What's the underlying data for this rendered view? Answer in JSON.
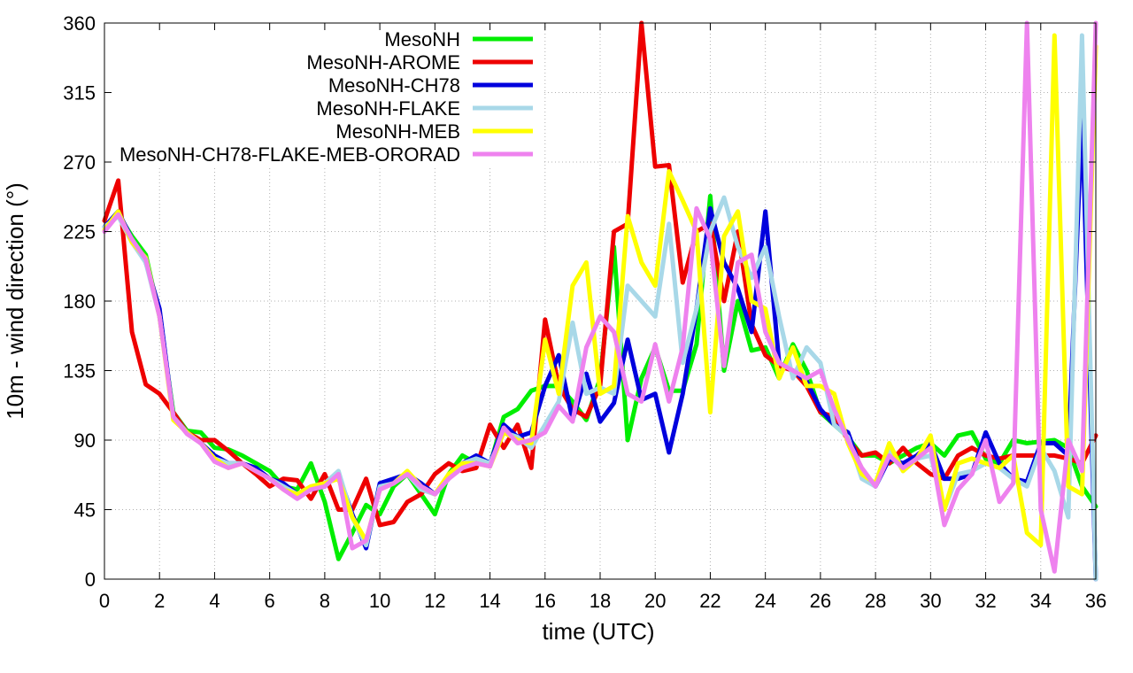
{
  "chart_data": {
    "type": "line",
    "title": "",
    "xlabel": "time (UTC)",
    "ylabel": "10m - wind direction (°)",
    "xlim": [
      0,
      36
    ],
    "ylim": [
      0,
      360
    ],
    "xticks": [
      0,
      2,
      4,
      6,
      8,
      10,
      12,
      14,
      16,
      18,
      20,
      22,
      24,
      26,
      28,
      30,
      32,
      34,
      36
    ],
    "yticks": [
      0,
      45,
      90,
      135,
      180,
      225,
      270,
      315,
      360
    ],
    "xtick_labels": [
      "0",
      "2",
      "4",
      "6",
      "8",
      "10",
      "12",
      "14",
      "16",
      "18",
      "20",
      "22",
      "24",
      "26",
      "28",
      "30",
      "32",
      "34",
      "36"
    ],
    "ytick_labels": [
      "0",
      "45",
      "90",
      "135",
      "180",
      "225",
      "270",
      "315",
      "360"
    ],
    "grid": true,
    "legend_position": "top-center",
    "x": [
      0,
      0.5,
      1,
      1.5,
      2,
      2.5,
      3,
      3.5,
      4,
      4.5,
      5,
      5.5,
      6,
      6.5,
      7,
      7.5,
      8,
      8.5,
      9,
      9.5,
      10,
      10.5,
      11,
      11.5,
      12,
      12.5,
      13,
      13.5,
      14,
      14.5,
      15,
      15.5,
      16,
      16.5,
      17,
      17.5,
      18,
      18.5,
      19,
      19.5,
      20,
      20.5,
      21,
      21.5,
      22,
      22.5,
      23,
      23.5,
      24,
      24.5,
      25,
      25.5,
      26,
      26.5,
      27,
      27.5,
      28,
      28.5,
      29,
      29.5,
      30,
      30.5,
      31,
      31.5,
      32,
      32.5,
      33,
      33.5,
      34,
      34.5,
      35,
      35.5,
      36
    ],
    "series": [
      {
        "name": "MesoNH",
        "color": "#00ee00",
        "values": [
          228,
          236,
          222,
          210,
          170,
          108,
          96,
          95,
          85,
          84,
          80,
          75,
          70,
          60,
          58,
          75,
          50,
          13,
          30,
          48,
          42,
          60,
          68,
          55,
          42,
          68,
          80,
          75,
          74,
          105,
          110,
          122,
          125,
          125,
          115,
          103,
          130,
          215,
          90,
          130,
          150,
          122,
          122,
          152,
          248,
          135,
          180,
          148,
          150,
          130,
          152,
          135,
          108,
          100,
          92,
          80,
          80,
          75,
          80,
          85,
          88,
          80,
          93,
          95,
          78,
          75,
          90,
          88,
          89,
          90,
          85,
          60,
          47
        ]
      },
      {
        "name": "MesoNH-AROME",
        "color": "#ee0000",
        "values": [
          232,
          258,
          160,
          126,
          120,
          108,
          95,
          90,
          90,
          83,
          75,
          68,
          60,
          65,
          64,
          52,
          68,
          45,
          45,
          65,
          35,
          37,
          50,
          55,
          68,
          75,
          70,
          72,
          100,
          85,
          100,
          72,
          168,
          125,
          110,
          105,
          125,
          225,
          230,
          360,
          267,
          268,
          192,
          225,
          230,
          180,
          225,
          165,
          145,
          138,
          135,
          125,
          108,
          105,
          90,
          80,
          82,
          75,
          85,
          75,
          68,
          65,
          80,
          85,
          80,
          78,
          80,
          80,
          80,
          80,
          78,
          75,
          93
        ]
      },
      {
        "name": "MesoNH-CH78",
        "color": "#0000dd",
        "values": [
          228,
          238,
          220,
          205,
          175,
          105,
          95,
          88,
          80,
          75,
          75,
          72,
          65,
          62,
          55,
          58,
          60,
          68,
          42,
          20,
          62,
          65,
          68,
          62,
          55,
          65,
          75,
          80,
          75,
          100,
          92,
          95,
          125,
          145,
          103,
          133,
          102,
          114,
          155,
          116,
          120,
          82,
          120,
          175,
          240,
          205,
          188,
          160,
          238,
          140,
          135,
          128,
          110,
          100,
          95,
          70,
          60,
          78,
          75,
          80,
          88,
          65,
          65,
          68,
          95,
          75,
          65,
          63,
          88,
          88,
          80,
          300,
          0
        ]
      },
      {
        "name": "MesoNH-FLAKE",
        "color": "#a8d8e8",
        "values": [
          228,
          235,
          218,
          205,
          170,
          105,
          95,
          88,
          78,
          75,
          75,
          70,
          65,
          60,
          55,
          60,
          62,
          70,
          40,
          22,
          60,
          62,
          68,
          58,
          55,
          65,
          75,
          78,
          75,
          95,
          92,
          85,
          100,
          115,
          166,
          120,
          124,
          120,
          190,
          180,
          170,
          230,
          140,
          175,
          225,
          247,
          215,
          195,
          215,
          170,
          130,
          150,
          140,
          100,
          92,
          65,
          60,
          85,
          70,
          78,
          80,
          45,
          68,
          70,
          75,
          72,
          65,
          60,
          85,
          70,
          40,
          352,
          0
        ]
      },
      {
        "name": "MesoNH-MEB",
        "color": "#ffff00",
        "values": [
          226,
          238,
          218,
          208,
          170,
          103,
          95,
          88,
          78,
          72,
          75,
          70,
          65,
          58,
          55,
          60,
          62,
          65,
          40,
          25,
          58,
          62,
          70,
          60,
          55,
          68,
          75,
          75,
          73,
          95,
          90,
          88,
          155,
          120,
          190,
          205,
          120,
          125,
          235,
          205,
          190,
          264,
          245,
          225,
          108,
          222,
          238,
          180,
          175,
          130,
          150,
          125,
          125,
          120,
          88,
          68,
          62,
          88,
          70,
          78,
          93,
          45,
          75,
          78,
          75,
          72,
          80,
          30,
          22,
          352,
          60,
          55,
          345
        ]
      },
      {
        "name": "MesoNH-CH78-FLAKE-MEB-ORORAD",
        "color": "#ee82ee",
        "values": [
          225,
          236,
          220,
          207,
          170,
          105,
          94,
          88,
          76,
          72,
          75,
          70,
          65,
          58,
          52,
          58,
          60,
          68,
          20,
          25,
          58,
          62,
          68,
          60,
          55,
          65,
          72,
          75,
          73,
          98,
          88,
          90,
          95,
          112,
          102,
          150,
          170,
          160,
          120,
          115,
          152,
          115,
          150,
          240,
          220,
          138,
          205,
          210,
          160,
          140,
          135,
          130,
          135,
          110,
          90,
          72,
          60,
          80,
          72,
          78,
          85,
          35,
          58,
          68,
          90,
          50,
          62,
          360,
          45,
          5,
          90,
          70,
          360
        ]
      }
    ]
  }
}
